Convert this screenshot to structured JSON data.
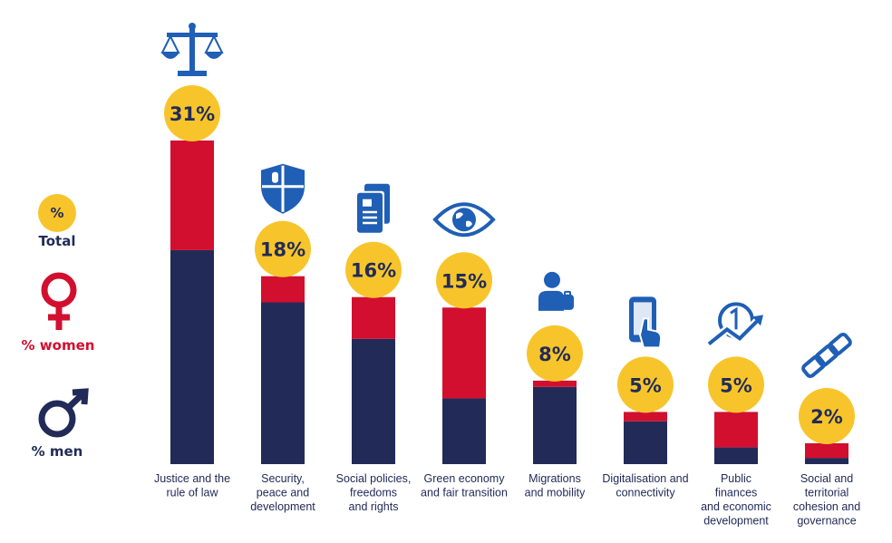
{
  "chart_data": {
    "type": "bar",
    "stacked": true,
    "title": "",
    "xlabel": "",
    "ylabel": "",
    "ylim": [
      0,
      31
    ],
    "grid": false,
    "legend_position": "left",
    "categories": [
      "Justice and the rule of law",
      "Security, peace and development",
      "Social policies, freedoms and rights",
      "Green economy and fair transition",
      "Migrations and mobility",
      "Digitalisation and connectivity",
      "Public finances and economic development",
      "Social and territorial cohesion and governance"
    ],
    "category_lines": [
      [
        "Justice and the",
        "rule of law"
      ],
      [
        "Security,",
        "peace and",
        "development"
      ],
      [
        "Social policies,",
        "freedoms",
        "and rights"
      ],
      [
        "Green economy",
        "and fair transition"
      ],
      [
        "Migrations",
        "and mobility"
      ],
      [
        "Digitalisation and",
        "connectivity"
      ],
      [
        "Public",
        "finances",
        "and economic",
        "development"
      ],
      [
        "Social and",
        "territorial",
        "cohesion and",
        "governance"
      ]
    ],
    "icons": [
      "scales-of-justice-icon",
      "shield-icon",
      "documents-icon",
      "eye-globe-icon",
      "people-icon",
      "smartphone-touch-icon",
      "coin-growth-icon",
      "chain-link-icon"
    ],
    "total_labels": [
      "31%",
      "18%",
      "16%",
      "15%",
      "8%",
      "5%",
      "5%",
      "2%"
    ],
    "totals": [
      31,
      18,
      16,
      15,
      8,
      5,
      5,
      2
    ],
    "series": [
      {
        "name": "% men",
        "color": "#222b58",
        "values": [
          20.5,
          15.5,
          12,
          6.3,
          7.4,
          4.1,
          1.6,
          0.6
        ]
      },
      {
        "name": "% women",
        "color": "#d20f2e",
        "values": [
          10.5,
          2.5,
          4,
          8.7,
          0.6,
          0.9,
          3.4,
          1.4
        ]
      }
    ],
    "legend": {
      "total_symbol": "%",
      "total_label": "Total",
      "women_label": "% women",
      "men_label": "% men"
    },
    "colors": {
      "total": "#f7c52b",
      "women": "#d20f2e",
      "men": "#222b58",
      "icon": "#1f5fb5"
    }
  }
}
